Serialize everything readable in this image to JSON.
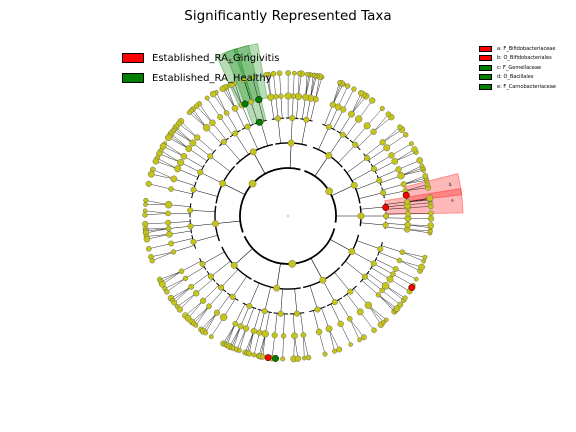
{
  "chart_data": {
    "type": "cladogram",
    "title": "Significantly Represented Taxa",
    "groups": [
      {
        "name": "Established_RA_Gingivitis",
        "color": "#ff0000"
      },
      {
        "name": "Established_RA_Healthy",
        "color": "#008000"
      }
    ],
    "biomarkers": [
      {
        "label": "a: F_Bifidobacteriaceae",
        "group": "Established_RA_Gingivitis",
        "color": "#ff0000",
        "sector_letter": "a"
      },
      {
        "label": "b: O_Bifidobacteriales",
        "group": "Established_RA_Gingivitis",
        "color": "#ff0000",
        "sector_letter": "b"
      },
      {
        "label": "c: F_Gemellaceae",
        "group": "Established_RA_Healthy",
        "color": "#008000",
        "sector_letter": "c"
      },
      {
        "label": "d: O_Bacillales",
        "group": "Established_RA_Healthy",
        "color": "#008000",
        "sector_letter": "d"
      },
      {
        "label": "e: F_Carnobacteriaceae",
        "group": "Established_RA_Healthy",
        "color": "#008000",
        "sector_letter": "e"
      }
    ],
    "node_color_default": "#c4c41a",
    "levels": 6
  }
}
